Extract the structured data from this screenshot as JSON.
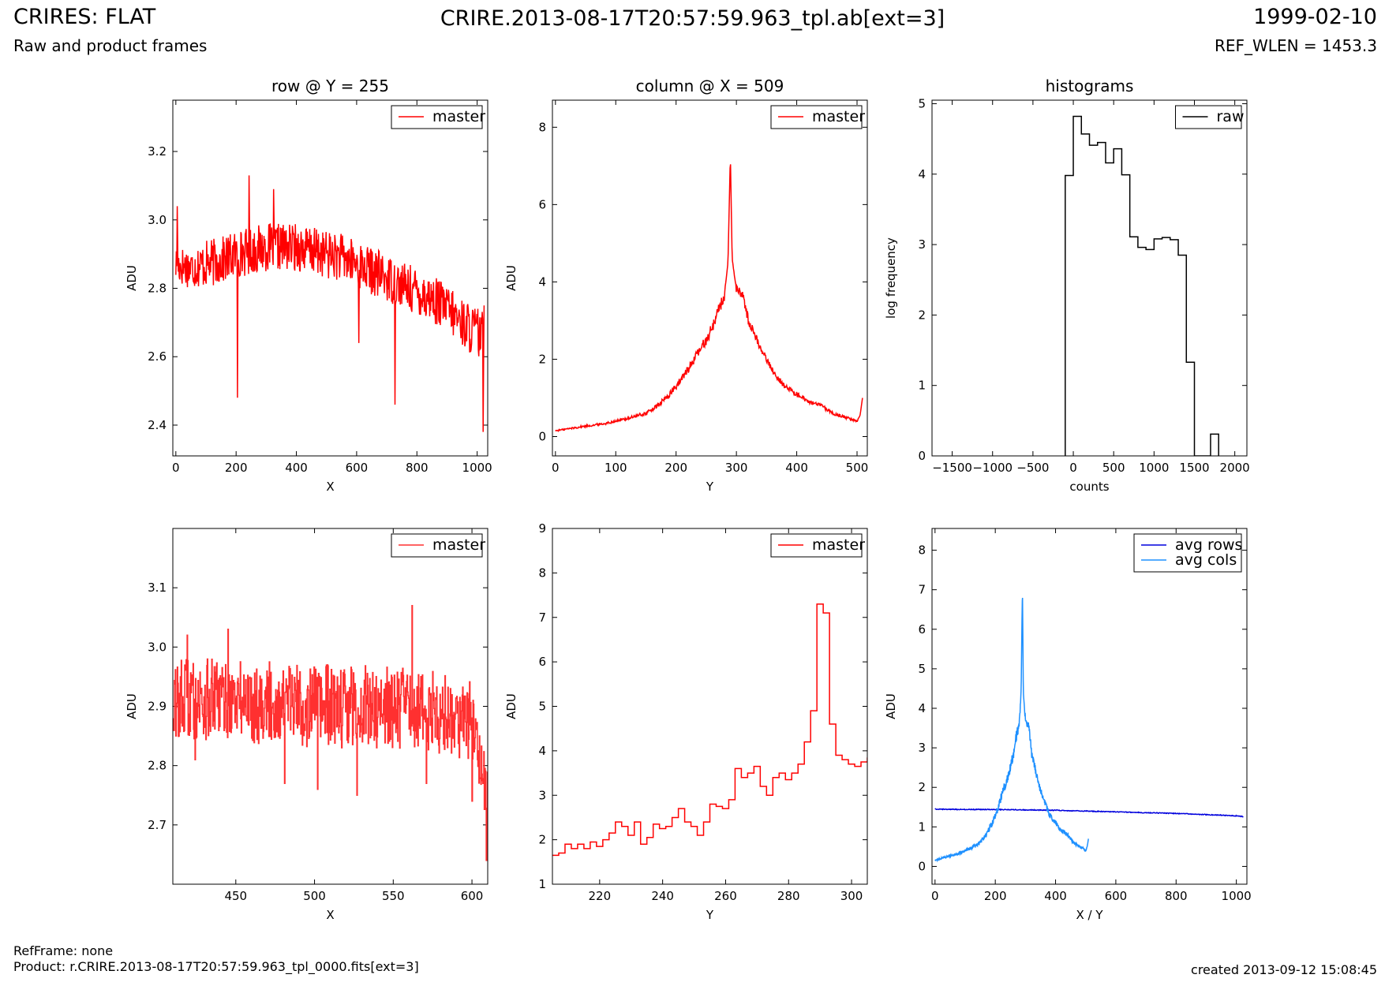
{
  "header": {
    "title": "CRIRES: FLAT",
    "subtitle": "Raw and product frames",
    "file": "CRIRE.2013-08-17T20:57:59.963_tpl.ab[ext=3]",
    "date": "1999-02-10",
    "ref_wlen": "REF_WLEN = 1453.3"
  },
  "footer": {
    "ref_frame": "RefFrame: none",
    "product": "Product: r.CRIRE.2013-08-17T20:57:59.963_tpl_0000.fits[ext=3]",
    "created": "created 2013-09-12 15:08:45"
  },
  "colors": {
    "red": "#ff0000",
    "red_light": "#ff3030",
    "black": "#000000",
    "blue": "#0000dd",
    "light_blue": "#1e90ff"
  },
  "chart_data": [
    {
      "type": "line",
      "title": "row @ Y = 255",
      "xlabel": "X",
      "ylabel": "ADU",
      "xlim": [
        -10,
        1035
      ],
      "ylim": [
        2.31,
        3.35
      ],
      "xticks": [
        0,
        200,
        400,
        600,
        800,
        1000
      ],
      "yticks": [
        2.4,
        2.6,
        2.8,
        3.0,
        3.2
      ],
      "ytick_decimals": 1,
      "legend": {
        "position": "top-right",
        "entries": [
          "master"
        ]
      },
      "series": [
        {
          "name": "master",
          "color": "#ff0000",
          "x": [
            0,
            50,
            100,
            150,
            200,
            250,
            300,
            350,
            400,
            450,
            500,
            550,
            600,
            650,
            700,
            750,
            800,
            850,
            900,
            950,
            1000,
            1023
          ],
          "y": [
            2.87,
            2.86,
            2.87,
            2.88,
            2.9,
            2.91,
            2.92,
            2.92,
            2.92,
            2.91,
            2.9,
            2.89,
            2.87,
            2.85,
            2.83,
            2.81,
            2.79,
            2.77,
            2.74,
            2.7,
            2.67,
            2.65
          ],
          "amp": [
            0.06,
            0.06,
            0.07,
            0.07,
            0.07,
            0.07,
            0.07,
            0.07,
            0.07,
            0.07,
            0.07,
            0.07,
            0.07,
            0.07,
            0.07,
            0.07,
            0.07,
            0.07,
            0.07,
            0.07,
            0.08,
            0.08
          ],
          "spikes": [
            [
              5,
              3.04
            ],
            [
              205,
              2.48
            ],
            [
              243,
              3.13
            ],
            [
              325,
              3.09
            ],
            [
              607,
              2.64
            ],
            [
              727,
              2.46
            ],
            [
              1020,
              2.38
            ],
            [
              1030,
              2.75
            ]
          ]
        }
      ]
    },
    {
      "type": "line",
      "title": "column @ X = 509",
      "xlabel": "Y",
      "ylabel": "ADU",
      "xlim": [
        -5,
        517
      ],
      "ylim": [
        -0.5,
        8.7
      ],
      "xticks": [
        0,
        100,
        200,
        300,
        400,
        500
      ],
      "yticks": [
        0,
        2,
        4,
        6,
        8
      ],
      "ytick_decimals": 0,
      "legend": {
        "position": "top-right",
        "entries": [
          "master"
        ]
      },
      "series": [
        {
          "name": "master",
          "color": "#ff0000",
          "x": [
            0,
            20,
            50,
            80,
            100,
            120,
            150,
            170,
            190,
            210,
            230,
            250,
            262,
            270,
            280,
            286,
            290,
            293,
            300,
            310,
            320,
            340,
            360,
            380,
            400,
            420,
            440,
            460,
            480,
            500,
            505,
            509
          ],
          "y": [
            0.15,
            0.2,
            0.27,
            0.33,
            0.4,
            0.47,
            0.6,
            0.8,
            1.1,
            1.5,
            2.0,
            2.5,
            2.9,
            3.3,
            3.6,
            4.5,
            7.3,
            4.6,
            3.8,
            3.7,
            3.0,
            2.3,
            1.7,
            1.3,
            1.1,
            0.9,
            0.8,
            0.6,
            0.5,
            0.4,
            0.55,
            1.0
          ],
          "amp": [
            0.02,
            0.02,
            0.03,
            0.03,
            0.03,
            0.04,
            0.05,
            0.06,
            0.08,
            0.1,
            0.12,
            0.14,
            0.15,
            0.15,
            0.15,
            0.0,
            0.0,
            0.0,
            0.12,
            0.12,
            0.12,
            0.1,
            0.08,
            0.07,
            0.06,
            0.05,
            0.05,
            0.04,
            0.04,
            0.03,
            0.0,
            0.0
          ]
        }
      ]
    },
    {
      "type": "histogram",
      "title": "histograms",
      "xlabel": "counts",
      "ylabel": "log frequency",
      "xlim": [
        -1750,
        2150
      ],
      "ylim": [
        0,
        5.05
      ],
      "xticks": [
        -1500,
        -1000,
        -500,
        0,
        500,
        1000,
        1500,
        2000
      ],
      "yticks": [
        0,
        1,
        2,
        3,
        4,
        5
      ],
      "ytick_decimals": 0,
      "legend": {
        "position": "top-right",
        "entries": [
          "raw"
        ]
      },
      "series": [
        {
          "name": "raw",
          "color": "#000000",
          "edges": [
            -100,
            0,
            100,
            200,
            300,
            400,
            500,
            600,
            700,
            800,
            900,
            1000,
            1100,
            1200,
            1300,
            1400,
            1500,
            1600,
            1700,
            1800
          ],
          "values": [
            3.98,
            4.82,
            4.57,
            4.41,
            4.45,
            4.16,
            4.36,
            3.99,
            3.11,
            2.96,
            2.93,
            3.08,
            3.1,
            3.07,
            2.85,
            1.33,
            0.0,
            0.0,
            0.31
          ]
        }
      ]
    },
    {
      "type": "line",
      "title": "",
      "xlabel": "X",
      "ylabel": "ADU",
      "xlim": [
        410,
        610
      ],
      "ylim": [
        2.6,
        3.2
      ],
      "xticks": [
        450,
        500,
        550,
        600
      ],
      "yticks": [
        2.7,
        2.8,
        2.9,
        3.0,
        3.1
      ],
      "ytick_decimals": 1,
      "step": true,
      "legend": {
        "position": "top-right",
        "entries": [
          "master"
        ]
      },
      "series": [
        {
          "name": "master",
          "color": "#ff3030",
          "x": [
            410,
            450,
            500,
            550,
            600,
            605,
            610
          ],
          "y": [
            2.91,
            2.91,
            2.9,
            2.9,
            2.88,
            2.8,
            2.75
          ],
          "amp": [
            0.07,
            0.07,
            0.07,
            0.07,
            0.07,
            0.05,
            0.05
          ],
          "spikes": [
            [
              412,
              2.85
            ],
            [
              419,
              3.02
            ],
            [
              424,
              2.81
            ],
            [
              445,
              3.03
            ],
            [
              481,
              2.77
            ],
            [
              502,
              2.76
            ],
            [
              527,
              2.75
            ],
            [
              562,
              3.07
            ],
            [
              571,
              2.77
            ],
            [
              600,
              2.74
            ],
            [
              609,
              2.64
            ]
          ]
        }
      ]
    },
    {
      "type": "line",
      "title": "",
      "xlabel": "Y",
      "ylabel": "ADU",
      "xlim": [
        205,
        305
      ],
      "ylim": [
        1.0,
        9.0
      ],
      "xticks": [
        220,
        240,
        260,
        280,
        300
      ],
      "yticks": [
        1,
        2,
        3,
        4,
        5,
        6,
        7,
        8,
        9
      ],
      "ytick_decimals": 0,
      "step": true,
      "legend": {
        "position": "top-right",
        "entries": [
          "master"
        ]
      },
      "series": [
        {
          "name": "master",
          "color": "#ff0000",
          "x": [
            205,
            207,
            209,
            211,
            213,
            215,
            217,
            219,
            221,
            223,
            225,
            227,
            229,
            231,
            233,
            235,
            237,
            239,
            241,
            243,
            245,
            247,
            249,
            251,
            253,
            255,
            257,
            259,
            261,
            263,
            265,
            267,
            269,
            271,
            273,
            275,
            277,
            279,
            281,
            283,
            285,
            287,
            289,
            291,
            293,
            295,
            297,
            299,
            301,
            303,
            305
          ],
          "y": [
            1.65,
            1.7,
            1.9,
            1.8,
            1.9,
            1.8,
            1.95,
            1.85,
            2.0,
            2.15,
            2.4,
            2.3,
            2.1,
            2.4,
            1.9,
            2.05,
            2.35,
            2.25,
            2.3,
            2.5,
            2.7,
            2.4,
            2.3,
            2.1,
            2.4,
            2.8,
            2.75,
            2.7,
            2.9,
            3.6,
            3.4,
            3.5,
            3.65,
            3.2,
            3.0,
            3.4,
            3.5,
            3.35,
            3.5,
            3.7,
            4.2,
            4.9,
            7.3,
            7.1,
            4.6,
            3.9,
            3.8,
            3.7,
            3.65,
            3.75,
            3.85
          ]
        }
      ]
    },
    {
      "type": "line",
      "title": "",
      "xlabel": "X / Y",
      "ylabel": "ADU",
      "xlim": [
        -10,
        1035
      ],
      "ylim": [
        -0.45,
        8.55
      ],
      "xticks": [
        0,
        200,
        400,
        600,
        800,
        1000
      ],
      "yticks": [
        0,
        1,
        2,
        3,
        4,
        5,
        6,
        7,
        8
      ],
      "ytick_decimals": 0,
      "legend": {
        "position": "top-right",
        "entries": [
          "avg rows",
          "avg cols"
        ]
      },
      "series": [
        {
          "name": "avg rows",
          "color": "#0000dd",
          "x": [
            0,
            100,
            200,
            300,
            400,
            500,
            600,
            700,
            800,
            900,
            1000,
            1023
          ],
          "y": [
            1.45,
            1.44,
            1.44,
            1.43,
            1.42,
            1.4,
            1.38,
            1.36,
            1.34,
            1.31,
            1.28,
            1.26
          ],
          "amp": [
            0.01,
            0.01,
            0.01,
            0.01,
            0.01,
            0.01,
            0.01,
            0.01,
            0.01,
            0.01,
            0.01,
            0.01
          ]
        },
        {
          "name": "avg cols",
          "color": "#1e90ff",
          "x": [
            0,
            20,
            50,
            80,
            100,
            120,
            150,
            170,
            190,
            210,
            230,
            250,
            262,
            270,
            280,
            286,
            290,
            293,
            300,
            310,
            320,
            340,
            360,
            380,
            400,
            420,
            440,
            460,
            480,
            500,
            505,
            509
          ],
          "y": [
            0.15,
            0.2,
            0.27,
            0.33,
            0.4,
            0.47,
            0.6,
            0.8,
            1.1,
            1.5,
            2.0,
            2.5,
            2.9,
            3.3,
            3.6,
            4.5,
            7.05,
            4.4,
            3.7,
            3.6,
            2.9,
            2.2,
            1.7,
            1.3,
            1.1,
            0.9,
            0.8,
            0.6,
            0.5,
            0.4,
            0.5,
            0.7
          ],
          "amp": [
            0.02,
            0.02,
            0.03,
            0.03,
            0.03,
            0.04,
            0.05,
            0.06,
            0.08,
            0.1,
            0.12,
            0.14,
            0.15,
            0.15,
            0.15,
            0.0,
            0.0,
            0.0,
            0.12,
            0.12,
            0.12,
            0.1,
            0.08,
            0.07,
            0.06,
            0.05,
            0.05,
            0.04,
            0.04,
            0.03,
            0.0,
            0.0
          ]
        }
      ]
    }
  ]
}
